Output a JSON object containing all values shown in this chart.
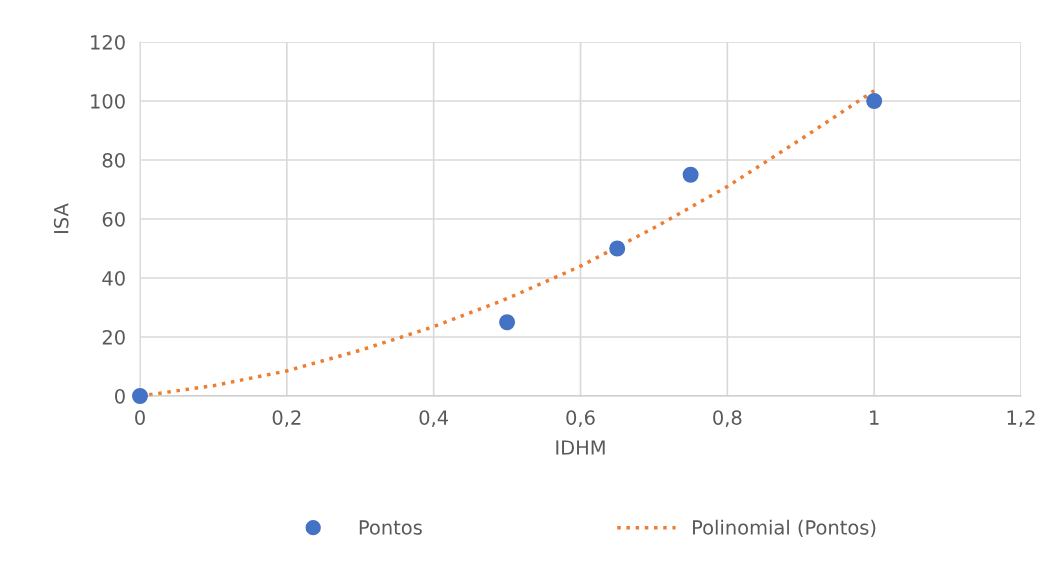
{
  "chart_data": {
    "type": "scatter",
    "xlabel": "IDHM",
    "ylabel": "ISA",
    "x": [
      0,
      0.5,
      0.65,
      0.75,
      1
    ],
    "series": [
      {
        "name": "Pontos",
        "color": "#4472c4",
        "marker": "circle",
        "values": [
          0,
          25,
          50,
          75,
          100
        ]
      },
      {
        "name": "Polinomial (Pontos)",
        "type": "line",
        "color": "#ed7d31",
        "line_style": "dotted",
        "marker": "none",
        "x": [
          0,
          0.1,
          0.2,
          0.3,
          0.4,
          0.5,
          0.6,
          0.7,
          0.8,
          0.9,
          1.0
        ],
        "values": [
          0,
          3.5,
          8.5,
          15.5,
          23.5,
          33,
          44,
          57,
          71,
          87,
          103.5
        ]
      }
    ],
    "xlim": [
      0,
      1.2
    ],
    "xticks": [
      {
        "value": 0,
        "label": "0"
      },
      {
        "value": 0.2,
        "label": "0,2"
      },
      {
        "value": 0.4,
        "label": "0,4"
      },
      {
        "value": 0.6,
        "label": "0,6"
      },
      {
        "value": 0.8,
        "label": "0,8"
      },
      {
        "value": 1,
        "label": "1"
      },
      {
        "value": 1.2,
        "label": "1,2"
      }
    ],
    "ylim": [
      0,
      120
    ],
    "yticks": [
      0,
      20,
      40,
      60,
      80,
      100,
      120
    ],
    "grid": true,
    "legend": "bottom"
  }
}
